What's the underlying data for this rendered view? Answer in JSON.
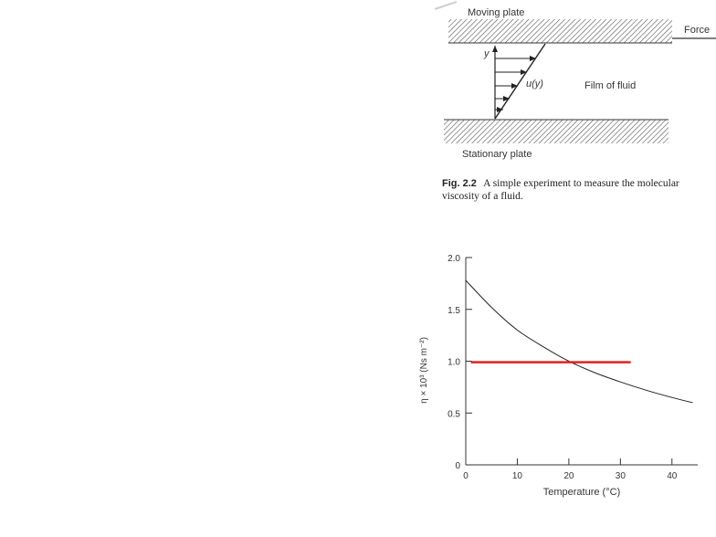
{
  "diagram": {
    "moving_plate_label": "Moving plate",
    "force_label": "Force",
    "y_label": "y",
    "velocity_label": "u(y)",
    "film_label": "Film of fluid",
    "stationary_plate_label": "Stationary plate"
  },
  "caption": {
    "fig_number": "Fig. 2.2",
    "line1": "A simple experiment to measure the molecular",
    "line2": "viscosity of a fluid."
  },
  "chart_data": {
    "type": "line",
    "xlabel": "Temperature (°C)",
    "ylabel": "η × 10³ (Ns m⁻²)",
    "xlim": [
      0,
      45
    ],
    "ylim": [
      0,
      2.0
    ],
    "x_ticks": [
      "0",
      "10",
      "20",
      "30",
      "40"
    ],
    "y_ticks": [
      "0",
      "0.5",
      "1.0",
      "1.5",
      "2.0"
    ],
    "grid": false,
    "series": [
      {
        "x": [
          0,
          5,
          10,
          15,
          20,
          25,
          30,
          35,
          40,
          44
        ],
        "y": [
          1.78,
          1.52,
          1.3,
          1.14,
          1.0,
          0.89,
          0.8,
          0.72,
          0.65,
          0.6
        ],
        "color": "#222222"
      }
    ],
    "annotations": [
      {
        "type": "hline",
        "y": 0.99,
        "x_start": 1,
        "x_end": 32,
        "color": "#e02020"
      }
    ]
  }
}
